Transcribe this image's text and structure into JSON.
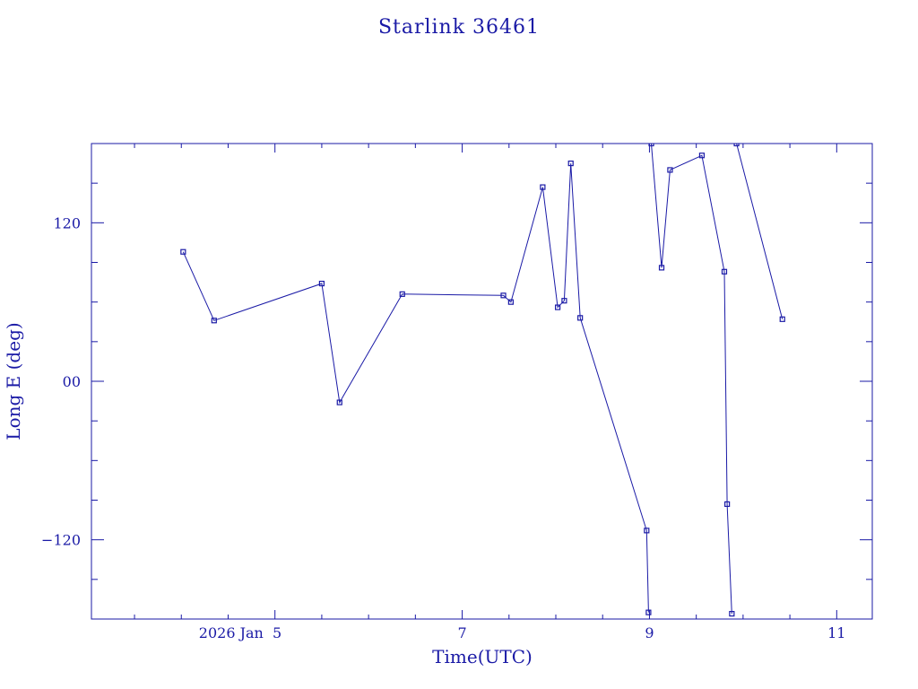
{
  "chart_data": {
    "type": "line",
    "title": "Starlink 36461",
    "xlabel": "Time(UTC)",
    "ylabel": "Long E (deg)",
    "x_date_label": "2026 Jan  5",
    "xlim": [
      3.04,
      11.38
    ],
    "ylim": [
      -180,
      180
    ],
    "x_ticks": [
      {
        "value": 5,
        "label": "5"
      },
      {
        "value": 7,
        "label": "7"
      },
      {
        "value": 9,
        "label": "9"
      },
      {
        "value": 11,
        "label": "11"
      }
    ],
    "y_ticks": [
      {
        "value": 120,
        "label": "120"
      },
      {
        "value": 0,
        "label": "00"
      },
      {
        "value": -120,
        "label": "−120"
      }
    ],
    "series": [
      {
        "x": [
          4.02,
          4.35,
          5.5,
          5.69,
          6.36,
          7.44,
          7.52,
          7.86,
          8.02,
          8.09,
          8.16,
          8.26,
          8.97,
          8.99,
          9.02,
          9.13,
          9.22,
          9.56,
          9.8,
          9.83,
          9.88,
          9.93,
          10.42
        ],
        "y": [
          98,
          46,
          74,
          -16,
          66,
          65,
          60,
          147,
          56,
          61,
          165,
          48,
          -113,
          -175,
          180,
          86,
          160,
          171,
          83,
          -93,
          -176,
          180,
          47
        ],
        "segments": [
          [
            0,
            13
          ],
          [
            14,
            20
          ],
          [
            21,
            22
          ]
        ]
      }
    ],
    "grid": false,
    "color": "#1a1aa6"
  }
}
